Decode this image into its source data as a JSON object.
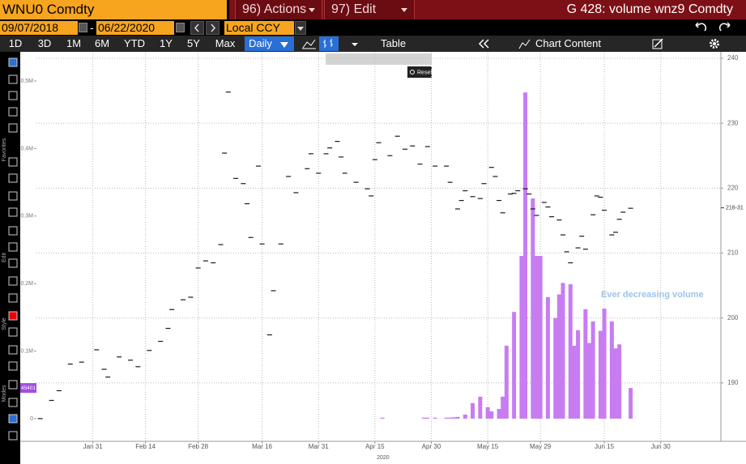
{
  "header": {
    "security": "WNU0 Comdty",
    "actions": "96) Actions",
    "edit": "97) Edit",
    "title": "G 428: volume wnz9 Comdty"
  },
  "range_bar": {
    "start_date": "09/07/2018",
    "date_separator": "-",
    "end_date": "06/22/2020",
    "currency": "Local CCY"
  },
  "toolbar": {
    "periods": [
      "1D",
      "3D",
      "1M",
      "6M",
      "YTD",
      "1Y",
      "5Y",
      "Max"
    ],
    "frequency": "Daily",
    "table": "Table",
    "chart_content": "Chart Content"
  },
  "popup": {
    "reset": "Reset"
  },
  "side_panel": {
    "sections": [
      "Favorites",
      "Edit",
      "Style",
      "Modes"
    ]
  },
  "chart_data": {
    "type": "bar-ohlc-combo",
    "xlim": [
      "2020-01-16",
      "2020-07-16"
    ],
    "xticks": [
      {
        "value": "2020-01-31",
        "label": "Jan 31"
      },
      {
        "value": "2020-02-14",
        "label": "Feb 14"
      },
      {
        "value": "2020-02-28",
        "label": "Feb 28"
      },
      {
        "value": "2020-03-16",
        "label": "Mar 16"
      },
      {
        "value": "2020-03-31",
        "label": "Mar 31"
      },
      {
        "value": "2020-04-15",
        "label": "Apr 15"
      },
      {
        "value": "2020-04-30",
        "label": "Apr 30"
      },
      {
        "value": "2020-05-15",
        "label": "May 15"
      },
      {
        "value": "2020-05-29",
        "label": "May 29"
      },
      {
        "value": "2020-06-15",
        "label": "Jun 15"
      },
      {
        "value": "2020-06-30",
        "label": "Jun 30"
      }
    ],
    "x_year_label": "2020",
    "ylim": [
      -33600,
      543200
    ],
    "yticks": [
      0,
      {
        "value": 100000,
        "label": "0.1M"
      },
      {
        "value": 200000,
        "label": "0.2M"
      },
      {
        "value": 300000,
        "label": "0.3M"
      },
      {
        "value": 400000,
        "label": "0.4M"
      },
      {
        "value": 500000,
        "label": "0.5M"
      }
    ],
    "y2lim": [
      181,
      241
    ],
    "y2ticks": [
      190,
      200,
      210,
      220,
      230,
      240
    ],
    "grid": true,
    "series": [
      {
        "type": "price",
        "axis": "y2",
        "color": "#1a1a1a",
        "x": [
          "2020-01-17",
          "2020-01-20",
          "2020-01-22",
          "2020-01-25",
          "2020-01-28",
          "2020-02-01",
          "2020-02-03",
          "2020-02-04",
          "2020-02-07",
          "2020-02-10",
          "2020-02-12",
          "2020-02-15",
          "2020-02-18",
          "2020-02-20",
          "2020-02-21",
          "2020-02-24",
          "2020-02-26",
          "2020-02-28",
          "2020-03-01",
          "2020-03-03",
          "2020-03-05",
          "2020-03-06",
          "2020-03-07",
          "2020-03-09",
          "2020-03-11",
          "2020-03-12",
          "2020-03-13",
          "2020-03-15",
          "2020-03-16",
          "2020-03-18",
          "2020-03-19",
          "2020-03-21",
          "2020-03-23",
          "2020-03-25",
          "2020-03-28",
          "2020-03-29",
          "2020-03-31",
          "2020-04-02",
          "2020-04-03",
          "2020-04-05",
          "2020-04-06",
          "2020-04-07",
          "2020-04-10",
          "2020-04-13",
          "2020-04-14",
          "2020-04-15",
          "2020-04-16",
          "2020-04-19",
          "2020-04-21",
          "2020-04-23",
          "2020-04-25",
          "2020-04-27",
          "2020-04-29",
          "2020-05-01",
          "2020-05-04",
          "2020-05-05",
          "2020-05-07",
          "2020-05-08",
          "2020-05-09",
          "2020-05-11",
          "2020-05-13",
          "2020-05-14",
          "2020-05-16",
          "2020-05-17",
          "2020-05-18",
          "2020-05-19",
          "2020-05-21",
          "2020-05-22",
          "2020-05-23",
          "2020-05-25",
          "2020-05-26",
          "2020-05-27",
          "2020-05-28",
          "2020-05-30",
          "2020-05-31",
          "2020-06-01",
          "2020-06-03",
          "2020-06-04",
          "2020-06-05",
          "2020-06-06",
          "2020-06-08",
          "2020-06-09",
          "2020-06-10",
          "2020-06-12",
          "2020-06-13",
          "2020-06-14",
          "2020-06-15",
          "2020-06-17",
          "2020-06-18",
          "2020-06-19",
          "2020-06-20",
          "2020-06-22"
        ],
        "values": [
          184.5,
          187.3,
          188.8,
          192.9,
          193.2,
          195.1,
          192.1,
          190.9,
          194.0,
          193.5,
          192.5,
          195.0,
          196.4,
          198.4,
          201.3,
          202.8,
          203.2,
          207.7,
          208.8,
          208.5,
          211.3,
          225.4,
          234.8,
          221.5,
          220.7,
          217.6,
          212.4,
          223.4,
          211.4,
          197.4,
          204.2,
          211.4,
          221.8,
          219.3,
          223.0,
          225.3,
          222.3,
          225.3,
          226.2,
          227.2,
          224.8,
          222.3,
          220.9,
          219.9,
          218.8,
          224.4,
          227.0,
          225.0,
          228.0,
          226.0,
          226.5,
          223.7,
          226.4,
          223.4,
          223.4,
          220.9,
          216.8,
          218.1,
          219.6,
          218.7,
          218.4,
          220.7,
          223.2,
          221.8,
          218.1,
          216.2,
          219.1,
          219.2,
          219.6,
          219.9,
          219.1,
          216.8,
          215.8,
          217.8,
          217.1,
          215.6,
          215.1,
          212.8,
          210.2,
          208.5,
          210.8,
          212.6,
          210.6,
          215.9,
          218.8,
          218.6,
          216.6,
          212.8,
          213.2,
          215.2,
          216.3,
          216.9
        ],
        "last_value": {
          "value": 216.97,
          "label": "216-31"
        }
      },
      {
        "type": "volume",
        "axis": "y",
        "color": "#c77cf2",
        "x": [
          "2020-04-17",
          "2020-04-28",
          "2020-04-29",
          "2020-05-01",
          "2020-05-04",
          "2020-05-05",
          "2020-05-06",
          "2020-05-07",
          "2020-05-09",
          "2020-05-11",
          "2020-05-13",
          "2020-05-15",
          "2020-05-16",
          "2020-05-18",
          "2020-05-19",
          "2020-05-20",
          "2020-05-22",
          "2020-05-24",
          "2020-05-25",
          "2020-05-27",
          "2020-05-28",
          "2020-05-29",
          "2020-05-31",
          "2020-06-02",
          "2020-06-03",
          "2020-06-04",
          "2020-06-06",
          "2020-06-07",
          "2020-06-08",
          "2020-06-10",
          "2020-06-11",
          "2020-06-12",
          "2020-06-14",
          "2020-06-15",
          "2020-06-17",
          "2020-06-18",
          "2020-06-19",
          "2020-06-22"
        ],
        "values": [
          1500,
          1500,
          1500,
          1500,
          1500,
          1500,
          2000,
          2500,
          6000,
          23000,
          32600,
          16800,
          10800,
          14400,
          32600,
          108000,
          158000,
          241000,
          483000,
          326000,
          241000,
          241000,
          180000,
          149000,
          184000,
          201000,
          199000,
          108000,
          131000,
          162000,
          112000,
          144000,
          130000,
          163000,
          144000,
          104000,
          110000,
          45401
        ],
        "last_value": 45401
      }
    ],
    "annotations": [
      {
        "text": "Ever decreasing volume",
        "color": "#9cc3ea"
      }
    ]
  }
}
